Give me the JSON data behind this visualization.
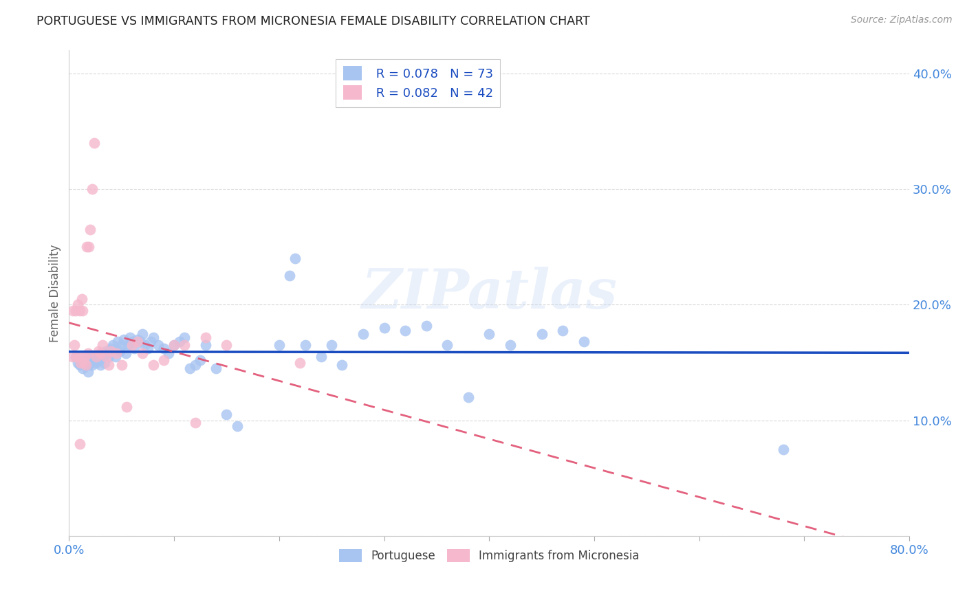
{
  "title": "PORTUGUESE VS IMMIGRANTS FROM MICRONESIA FEMALE DISABILITY CORRELATION CHART",
  "source": "Source: ZipAtlas.com",
  "ylabel": "Female Disability",
  "x_min": 0.0,
  "x_max": 0.8,
  "y_min": 0.0,
  "y_max": 0.42,
  "x_ticks": [
    0.0,
    0.1,
    0.2,
    0.3,
    0.4,
    0.5,
    0.6,
    0.7,
    0.8
  ],
  "y_ticks": [
    0.0,
    0.1,
    0.2,
    0.3,
    0.4
  ],
  "y_tick_labels": [
    "",
    "10.0%",
    "20.0%",
    "30.0%",
    "40.0%"
  ],
  "blue_color": "#a8c4f0",
  "pink_color": "#f5b8cc",
  "blue_line_color": "#1a4cc0",
  "pink_line_color": "#e05070",
  "grid_color": "#d8d8d8",
  "title_color": "#222222",
  "axis_label_color": "#4488dd",
  "legend_R1": "R = 0.078",
  "legend_N1": "N = 73",
  "legend_R2": "R = 0.082",
  "legend_N2": "N = 42",
  "watermark": "ZIPatlas",
  "blue_scatter_x": [
    0.006,
    0.008,
    0.01,
    0.012,
    0.013,
    0.015,
    0.016,
    0.018,
    0.018,
    0.02,
    0.021,
    0.022,
    0.023,
    0.025,
    0.026,
    0.028,
    0.03,
    0.032,
    0.034,
    0.035,
    0.036,
    0.038,
    0.04,
    0.042,
    0.044,
    0.046,
    0.048,
    0.05,
    0.052,
    0.054,
    0.056,
    0.058,
    0.06,
    0.062,
    0.065,
    0.068,
    0.07,
    0.072,
    0.075,
    0.078,
    0.08,
    0.085,
    0.09,
    0.095,
    0.1,
    0.105,
    0.11,
    0.115,
    0.12,
    0.125,
    0.13,
    0.14,
    0.15,
    0.16,
    0.2,
    0.21,
    0.225,
    0.24,
    0.25,
    0.26,
    0.28,
    0.3,
    0.32,
    0.34,
    0.36,
    0.38,
    0.4,
    0.42,
    0.45,
    0.47,
    0.49,
    0.68,
    0.215
  ],
  "blue_scatter_y": [
    0.155,
    0.15,
    0.148,
    0.152,
    0.145,
    0.15,
    0.155,
    0.148,
    0.142,
    0.15,
    0.155,
    0.148,
    0.153,
    0.15,
    0.155,
    0.152,
    0.148,
    0.155,
    0.15,
    0.16,
    0.158,
    0.155,
    0.162,
    0.165,
    0.155,
    0.168,
    0.16,
    0.165,
    0.17,
    0.158,
    0.165,
    0.172,
    0.168,
    0.162,
    0.17,
    0.168,
    0.175,
    0.165,
    0.162,
    0.168,
    0.172,
    0.165,
    0.162,
    0.158,
    0.165,
    0.168,
    0.172,
    0.145,
    0.148,
    0.152,
    0.165,
    0.145,
    0.105,
    0.095,
    0.165,
    0.225,
    0.165,
    0.155,
    0.165,
    0.148,
    0.175,
    0.18,
    0.178,
    0.182,
    0.165,
    0.12,
    0.175,
    0.165,
    0.175,
    0.178,
    0.168,
    0.075,
    0.24
  ],
  "pink_scatter_x": [
    0.003,
    0.004,
    0.005,
    0.006,
    0.007,
    0.008,
    0.009,
    0.01,
    0.011,
    0.012,
    0.013,
    0.014,
    0.015,
    0.016,
    0.017,
    0.018,
    0.019,
    0.02,
    0.022,
    0.024,
    0.026,
    0.028,
    0.03,
    0.032,
    0.035,
    0.038,
    0.04,
    0.045,
    0.05,
    0.055,
    0.06,
    0.065,
    0.07,
    0.08,
    0.09,
    0.1,
    0.11,
    0.12,
    0.13,
    0.15,
    0.22,
    0.01
  ],
  "pink_scatter_y": [
    0.155,
    0.195,
    0.165,
    0.195,
    0.155,
    0.2,
    0.155,
    0.195,
    0.15,
    0.205,
    0.195,
    0.15,
    0.155,
    0.148,
    0.25,
    0.158,
    0.25,
    0.265,
    0.3,
    0.34,
    0.155,
    0.16,
    0.158,
    0.165,
    0.155,
    0.148,
    0.16,
    0.158,
    0.148,
    0.112,
    0.165,
    0.168,
    0.158,
    0.148,
    0.152,
    0.165,
    0.165,
    0.098,
    0.172,
    0.165,
    0.15,
    0.08
  ]
}
